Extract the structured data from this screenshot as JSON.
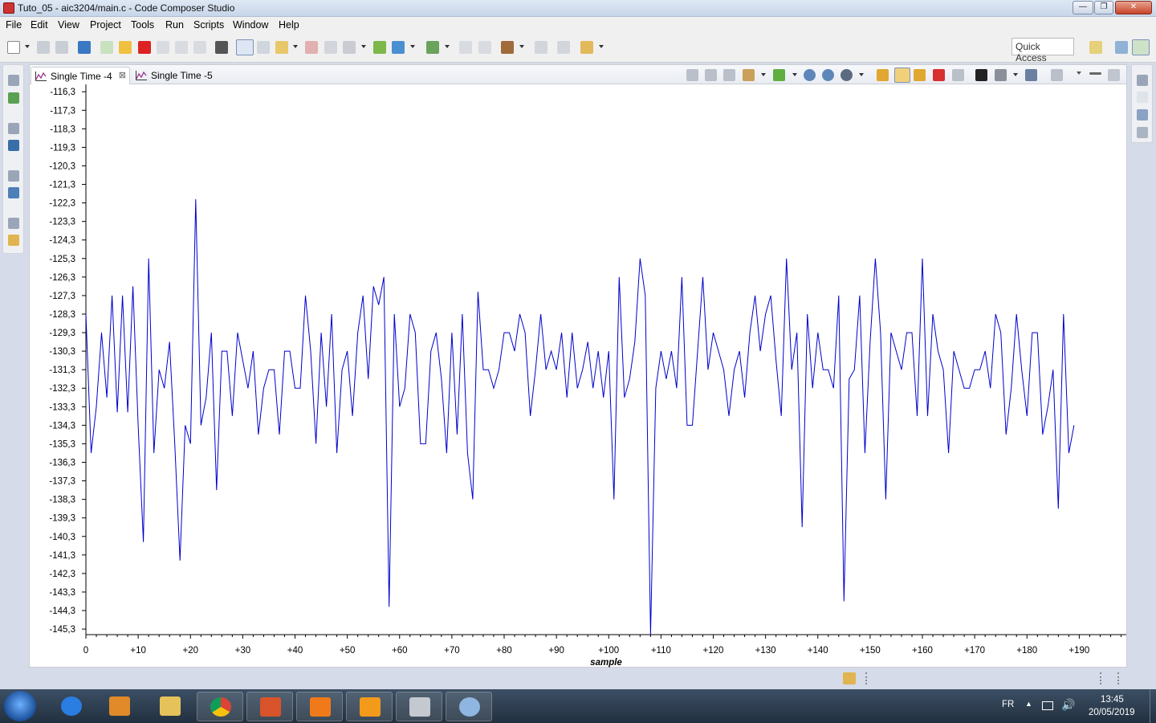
{
  "window": {
    "title": "Tuto_05 - aic3204/main.c - Code Composer Studio",
    "min": "—",
    "max": "❐",
    "close": "✕"
  },
  "menu": [
    "File",
    "Edit",
    "View",
    "Project",
    "Tools",
    "Run",
    "Scripts",
    "Window",
    "Help"
  ],
  "toolbar": {
    "quick_access": "Quick Access"
  },
  "tabs": [
    {
      "label": "Single Time -4",
      "close": "⊠"
    },
    {
      "label": "Single Time -5"
    }
  ],
  "colors": {
    "series": "#0000cc",
    "axis": "#000000"
  },
  "chart_data": {
    "type": "line",
    "xlabel": "sample",
    "ylabel": "",
    "xlim": [
      0,
      199
    ],
    "ylim": [
      -145.6,
      -115.9
    ],
    "x_ticks": [
      0,
      10,
      20,
      30,
      40,
      50,
      60,
      70,
      80,
      90,
      100,
      110,
      120,
      130,
      140,
      150,
      160,
      170,
      180,
      190
    ],
    "x_tick_labels": [
      "0",
      "+10",
      "+20",
      "+30",
      "+40",
      "+50",
      "+60",
      "+70",
      "+80",
      "+90",
      "+100",
      "+110",
      "+120",
      "+130",
      "+140",
      "+150",
      "+160",
      "+170",
      "+180",
      "+190"
    ],
    "y_ticks": [
      -116.3,
      -117.3,
      -118.3,
      -119.3,
      -120.3,
      -121.3,
      -122.3,
      -123.3,
      -124.3,
      -125.3,
      -126.3,
      -127.3,
      -128.3,
      -129.3,
      -130.3,
      -131.3,
      -132.3,
      -133.3,
      -134.3,
      -135.3,
      -136.3,
      -137.3,
      -138.3,
      -139.3,
      -140.3,
      -141.3,
      -142.3,
      -143.3,
      -144.3,
      -145.3
    ],
    "y_tick_labels": [
      "-116,3",
      "-117,3",
      "-118,3",
      "-119,3",
      "-120,3",
      "-121,3",
      "-122,3",
      "-123,3",
      "-124,3",
      "-125,3",
      "-126,3",
      "-127,3",
      "-128,3",
      "-129,3",
      "-130,3",
      "-131,3",
      "-132,3",
      "-133,3",
      "-134,3",
      "-135,3",
      "-136,3",
      "-137,3",
      "-138,3",
      "-139,3",
      "-140,3",
      "-141,3",
      "-142,3",
      "-143,3",
      "-144,3",
      "-145,3"
    ],
    "series": [
      {
        "values": [
          -128.3,
          -135.8,
          -133.3,
          -129.3,
          -132.8,
          -127.3,
          -133.6,
          -127.3,
          -133.6,
          -126.8,
          -134.3,
          -140.6,
          -125.3,
          -135.8,
          -131.3,
          -132.3,
          -129.8,
          -135.3,
          -141.6,
          -134.3,
          -135.3,
          -122.1,
          -134.3,
          -132.8,
          -129.3,
          -137.8,
          -130.3,
          -130.3,
          -133.8,
          -129.3,
          -130.8,
          -132.3,
          -130.3,
          -134.8,
          -132.3,
          -131.3,
          -131.3,
          -134.8,
          -130.3,
          -130.3,
          -132.3,
          -132.3,
          -127.3,
          -130.3,
          -135.3,
          -129.3,
          -133.3,
          -128.3,
          -135.8,
          -131.3,
          -130.3,
          -133.8,
          -129.3,
          -127.3,
          -131.8,
          -126.8,
          -127.8,
          -126.3,
          -144.1,
          -128.3,
          -133.3,
          -132.3,
          -128.3,
          -129.3,
          -135.3,
          -135.3,
          -130.3,
          -129.3,
          -131.8,
          -135.8,
          -129.3,
          -134.8,
          -128.3,
          -135.8,
          -138.3,
          -127.1,
          -131.3,
          -131.3,
          -132.3,
          -131.3,
          -129.3,
          -129.3,
          -130.3,
          -128.3,
          -129.3,
          -133.8,
          -131.3,
          -128.3,
          -131.3,
          -130.3,
          -131.3,
          -129.3,
          -132.8,
          -129.3,
          -132.3,
          -131.3,
          -129.8,
          -132.3,
          -130.3,
          -132.8,
          -130.3,
          -138.3,
          -126.3,
          -132.8,
          -131.8,
          -129.8,
          -125.3,
          -127.3,
          -146.3,
          -132.3,
          -130.3,
          -131.8,
          -130.3,
          -132.3,
          -126.3,
          -134.3,
          -134.3,
          -130.3,
          -126.3,
          -131.3,
          -129.3,
          -130.3,
          -131.3,
          -133.8,
          -131.3,
          -130.3,
          -132.8,
          -129.3,
          -127.3,
          -130.3,
          -128.3,
          -127.3,
          -130.8,
          -133.8,
          -125.3,
          -131.3,
          -129.3,
          -139.8,
          -128.3,
          -132.3,
          -129.3,
          -131.3,
          -131.3,
          -132.3,
          -127.3,
          -143.8,
          -131.8,
          -131.3,
          -127.3,
          -135.8,
          -129.8,
          -125.3,
          -129.3,
          -138.3,
          -129.3,
          -130.3,
          -131.3,
          -129.3,
          -129.3,
          -133.8,
          -125.3,
          -133.8,
          -128.3,
          -130.3,
          -131.3,
          -135.8,
          -130.3,
          -131.3,
          -132.3,
          -132.3,
          -131.3,
          -131.3,
          -130.3,
          -132.3,
          -128.3,
          -129.3,
          -134.8,
          -132.3,
          -128.3,
          -131.3,
          -133.8,
          -129.3,
          -129.3,
          -134.8,
          -133.3,
          -131.3,
          -138.8,
          -128.3,
          -135.8,
          -134.3
        ]
      }
    ]
  },
  "tray": {
    "lang": "FR",
    "time": "13:45",
    "date": "20/05/2019"
  }
}
